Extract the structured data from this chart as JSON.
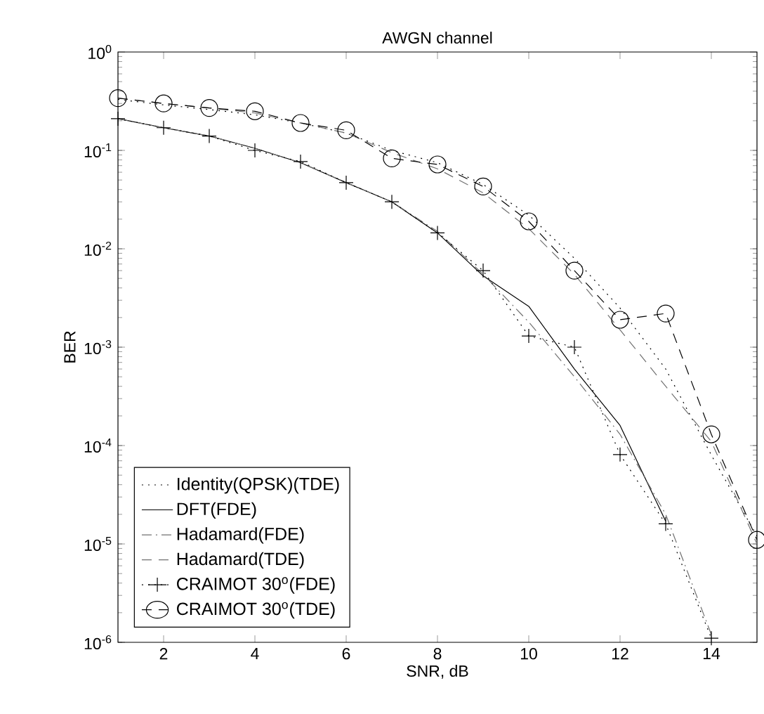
{
  "chart_data": {
    "type": "line",
    "title": "AWGN channel",
    "xlabel": "SNR, dB",
    "ylabel": "BER",
    "log": "y",
    "grid": false,
    "legend": "bottom left",
    "xlim": [
      1,
      15
    ],
    "xticks": [
      2,
      4,
      6,
      8,
      10,
      12,
      14
    ],
    "ylim": [
      1e-06,
      1
    ],
    "yticks": [
      {
        "value": 1e-06,
        "label": "10$^{-6}$"
      },
      {
        "value": 1e-05,
        "label": "10$^{-5}$"
      },
      {
        "value": 0.0001,
        "label": "10$^{-4}$"
      },
      {
        "value": 0.001,
        "label": "10$^{-3}$"
      },
      {
        "value": 0.01,
        "label": "10$^{-2}$"
      },
      {
        "value": 0.1,
        "label": "10$^{-1}$"
      },
      {
        "value": 1,
        "label": "10$^{0}$"
      }
    ],
    "series": [
      {
        "name": "Identity(QPSK)(TDE)",
        "color": "#000000",
        "line_style": "dotted",
        "marker": "none",
        "x": [
          1,
          2,
          3,
          4,
          5,
          6,
          7,
          8,
          9,
          10,
          11,
          12,
          13,
          14,
          15
        ],
        "values": [
          0.33,
          0.29,
          0.26,
          0.23,
          0.19,
          0.15,
          0.1,
          0.075,
          0.045,
          0.022,
          0.008,
          0.0025,
          0.0006,
          8e-05,
          1.2e-05
        ]
      },
      {
        "name": "DFT(FDE)",
        "color": "#000000",
        "line_style": "solid",
        "marker": "none",
        "x": [
          1,
          2,
          3,
          4,
          5,
          6,
          7,
          8,
          9,
          10,
          11,
          12,
          13
        ],
        "values": [
          0.21,
          0.17,
          0.14,
          0.105,
          0.075,
          0.047,
          0.03,
          0.0145,
          0.0053,
          0.0026,
          0.0006,
          0.00016,
          1.7e-05
        ]
      },
      {
        "name": "Hadamard(FDE)",
        "color": "#707070",
        "line_style": "dashdot",
        "marker": "none",
        "x": [
          1,
          2,
          3,
          4,
          5,
          6,
          7,
          8,
          9,
          10,
          11,
          12,
          13,
          14
        ],
        "values": [
          0.21,
          0.17,
          0.14,
          0.105,
          0.075,
          0.047,
          0.03,
          0.015,
          0.0055,
          0.0018,
          0.0005,
          0.00013,
          2e-05,
          1.2e-06
        ]
      },
      {
        "name": "Hadamard(TDE)",
        "color": "#707070",
        "line_style": "dashed",
        "marker": "none",
        "x": [
          1,
          2,
          3,
          4,
          5,
          6,
          7,
          8,
          9,
          10,
          11,
          12,
          13,
          14,
          15
        ],
        "values": [
          0.34,
          0.3,
          0.27,
          0.24,
          0.19,
          0.15,
          0.095,
          0.065,
          0.037,
          0.016,
          0.0055,
          0.0015,
          0.0004,
          0.00011,
          1e-05
        ]
      },
      {
        "name": "CRAIMOT 30$^{o}$(FDE)",
        "color": "#000000",
        "line_style": "dotted",
        "marker": "cross",
        "x": [
          1,
          2,
          3,
          4,
          5,
          6,
          7,
          8,
          9,
          10,
          11,
          12,
          13,
          14
        ],
        "values": [
          0.21,
          0.17,
          0.14,
          0.1,
          0.077,
          0.047,
          0.03,
          0.0145,
          0.006,
          0.0013,
          0.001,
          8.1e-05,
          1.6e-05,
          1.1e-06
        ]
      },
      {
        "name": "CRAIMOT 30$^{o}$(TDE)",
        "color": "#000000",
        "line_style": "dashed",
        "marker": "circle",
        "x": [
          1,
          2,
          3,
          4,
          5,
          6,
          7,
          8,
          9,
          10,
          11,
          12,
          13,
          14,
          15
        ],
        "values": [
          0.34,
          0.3,
          0.27,
          0.25,
          0.19,
          0.16,
          0.083,
          0.072,
          0.043,
          0.019,
          0.006,
          0.0019,
          0.0022,
          0.00013,
          1.1e-05
        ]
      }
    ]
  }
}
